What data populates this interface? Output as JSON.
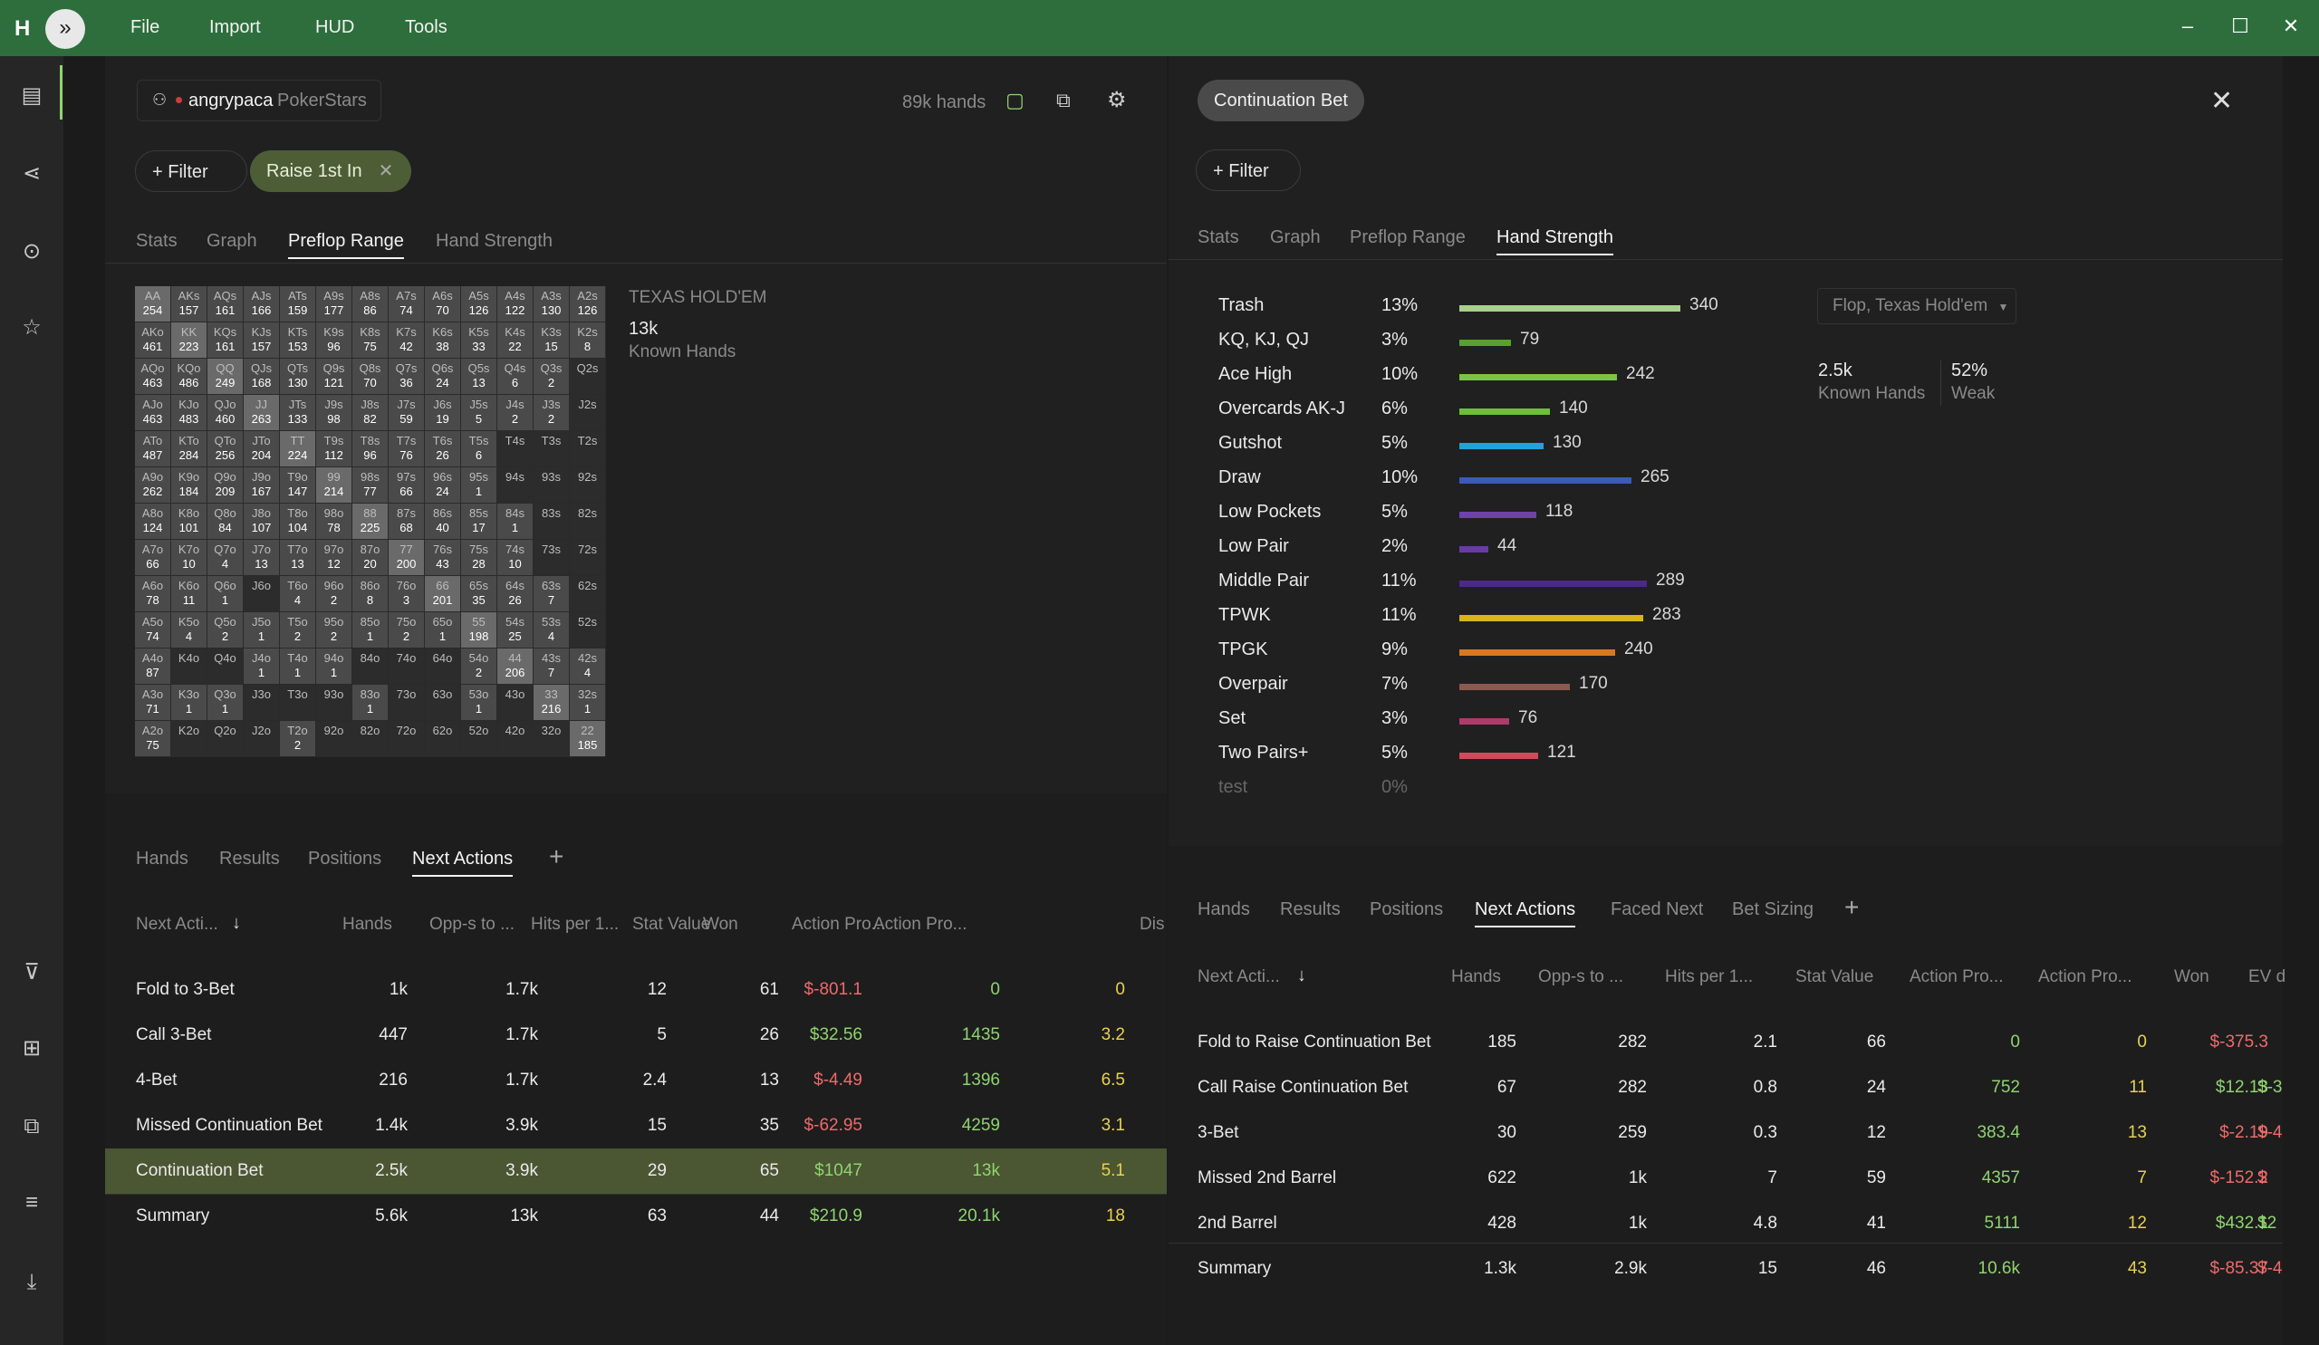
{
  "menu": [
    "File",
    "Import",
    "HUD",
    "Tools"
  ],
  "colors": {
    "titlebar": "#2d6e3c",
    "accent_green": "#8fd46f",
    "negative": "#ef6a6a",
    "highlight_row": "#4b5633"
  },
  "left": {
    "player": {
      "name": "angrypaca",
      "site": "PokerStars"
    },
    "hands_count": "89k hands",
    "filter_label": "Filter",
    "active_filter": "Raise 1st In",
    "tabs": [
      "Stats",
      "Graph",
      "Preflop Range",
      "Hand Strength"
    ],
    "active_tab": "Preflop Range",
    "range_info": {
      "game": "TEXAS HOLD'EM",
      "known": "13k",
      "known_label": "Known Hands"
    },
    "grid": [
      [
        [
          "AA",
          "254"
        ],
        [
          "AKs",
          "157"
        ],
        [
          "AQs",
          "161"
        ],
        [
          "AJs",
          "166"
        ],
        [
          "ATs",
          "159"
        ],
        [
          "A9s",
          "177"
        ],
        [
          "A8s",
          "86"
        ],
        [
          "A7s",
          "74"
        ],
        [
          "A6s",
          "70"
        ],
        [
          "A5s",
          "126"
        ],
        [
          "A4s",
          "122"
        ],
        [
          "A3s",
          "130"
        ],
        [
          "A2s",
          "126"
        ]
      ],
      [
        [
          "AKo",
          "461"
        ],
        [
          "KK",
          "223"
        ],
        [
          "KQs",
          "161"
        ],
        [
          "KJs",
          "157"
        ],
        [
          "KTs",
          "153"
        ],
        [
          "K9s",
          "96"
        ],
        [
          "K8s",
          "75"
        ],
        [
          "K7s",
          "42"
        ],
        [
          "K6s",
          "38"
        ],
        [
          "K5s",
          "33"
        ],
        [
          "K4s",
          "22"
        ],
        [
          "K3s",
          "15"
        ],
        [
          "K2s",
          "8"
        ]
      ],
      [
        [
          "AQo",
          "463"
        ],
        [
          "KQo",
          "486"
        ],
        [
          "QQ",
          "249"
        ],
        [
          "QJs",
          "168"
        ],
        [
          "QTs",
          "130"
        ],
        [
          "Q9s",
          "121"
        ],
        [
          "Q8s",
          "70"
        ],
        [
          "Q7s",
          "36"
        ],
        [
          "Q6s",
          "24"
        ],
        [
          "Q5s",
          "13"
        ],
        [
          "Q4s",
          "6"
        ],
        [
          "Q3s",
          "2"
        ],
        [
          "Q2s",
          ""
        ]
      ],
      [
        [
          "AJo",
          "463"
        ],
        [
          "KJo",
          "483"
        ],
        [
          "QJo",
          "460"
        ],
        [
          "JJ",
          "263"
        ],
        [
          "JTs",
          "133"
        ],
        [
          "J9s",
          "98"
        ],
        [
          "J8s",
          "82"
        ],
        [
          "J7s",
          "59"
        ],
        [
          "J6s",
          "19"
        ],
        [
          "J5s",
          "5"
        ],
        [
          "J4s",
          "2"
        ],
        [
          "J3s",
          "2"
        ],
        [
          "J2s",
          ""
        ]
      ],
      [
        [
          "ATo",
          "487"
        ],
        [
          "KTo",
          "284"
        ],
        [
          "QTo",
          "256"
        ],
        [
          "JTo",
          "204"
        ],
        [
          "TT",
          "224"
        ],
        [
          "T9s",
          "112"
        ],
        [
          "T8s",
          "96"
        ],
        [
          "T7s",
          "76"
        ],
        [
          "T6s",
          "26"
        ],
        [
          "T5s",
          "6"
        ],
        [
          "T4s",
          ""
        ],
        [
          "T3s",
          ""
        ],
        [
          "T2s",
          ""
        ]
      ],
      [
        [
          "A9o",
          "262"
        ],
        [
          "K9o",
          "184"
        ],
        [
          "Q9o",
          "209"
        ],
        [
          "J9o",
          "167"
        ],
        [
          "T9o",
          "147"
        ],
        [
          "99",
          "214"
        ],
        [
          "98s",
          "77"
        ],
        [
          "97s",
          "66"
        ],
        [
          "96s",
          "24"
        ],
        [
          "95s",
          "1"
        ],
        [
          "94s",
          ""
        ],
        [
          "93s",
          ""
        ],
        [
          "92s",
          ""
        ]
      ],
      [
        [
          "A8o",
          "124"
        ],
        [
          "K8o",
          "101"
        ],
        [
          "Q8o",
          "84"
        ],
        [
          "J8o",
          "107"
        ],
        [
          "T8o",
          "104"
        ],
        [
          "98o",
          "78"
        ],
        [
          "88",
          "225"
        ],
        [
          "87s",
          "68"
        ],
        [
          "86s",
          "40"
        ],
        [
          "85s",
          "17"
        ],
        [
          "84s",
          "1"
        ],
        [
          "83s",
          ""
        ],
        [
          "82s",
          ""
        ]
      ],
      [
        [
          "A7o",
          "66"
        ],
        [
          "K7o",
          "10"
        ],
        [
          "Q7o",
          "4"
        ],
        [
          "J7o",
          "13"
        ],
        [
          "T7o",
          "13"
        ],
        [
          "97o",
          "12"
        ],
        [
          "87o",
          "20"
        ],
        [
          "77",
          "200"
        ],
        [
          "76s",
          "43"
        ],
        [
          "75s",
          "28"
        ],
        [
          "74s",
          "10"
        ],
        [
          "73s",
          ""
        ],
        [
          "72s",
          ""
        ]
      ],
      [
        [
          "A6o",
          "78"
        ],
        [
          "K6o",
          "11"
        ],
        [
          "Q6o",
          "1"
        ],
        [
          "J6o",
          ""
        ],
        [
          "T6o",
          "4"
        ],
        [
          "96o",
          "2"
        ],
        [
          "86o",
          "8"
        ],
        [
          "76o",
          "3"
        ],
        [
          "66",
          "201"
        ],
        [
          "65s",
          "35"
        ],
        [
          "64s",
          "26"
        ],
        [
          "63s",
          "7"
        ],
        [
          "62s",
          ""
        ]
      ],
      [
        [
          "A5o",
          "74"
        ],
        [
          "K5o",
          "4"
        ],
        [
          "Q5o",
          "2"
        ],
        [
          "J5o",
          "1"
        ],
        [
          "T5o",
          "2"
        ],
        [
          "95o",
          "2"
        ],
        [
          "85o",
          "1"
        ],
        [
          "75o",
          "2"
        ],
        [
          "65o",
          "1"
        ],
        [
          "55",
          "198"
        ],
        [
          "54s",
          "25"
        ],
        [
          "53s",
          "4"
        ],
        [
          "52s",
          ""
        ]
      ],
      [
        [
          "A4o",
          "87"
        ],
        [
          "K4o",
          ""
        ],
        [
          "Q4o",
          ""
        ],
        [
          "J4o",
          "1"
        ],
        [
          "T4o",
          "1"
        ],
        [
          "94o",
          "1"
        ],
        [
          "84o",
          ""
        ],
        [
          "74o",
          ""
        ],
        [
          "64o",
          ""
        ],
        [
          "54o",
          "2"
        ],
        [
          "44",
          "206"
        ],
        [
          "43s",
          "7"
        ],
        [
          "42s",
          "4"
        ]
      ],
      [
        [
          "A3o",
          "71"
        ],
        [
          "K3o",
          "1"
        ],
        [
          "Q3o",
          "1"
        ],
        [
          "J3o",
          ""
        ],
        [
          "T3o",
          ""
        ],
        [
          "93o",
          ""
        ],
        [
          "83o",
          "1"
        ],
        [
          "73o",
          ""
        ],
        [
          "63o",
          ""
        ],
        [
          "53o",
          "1"
        ],
        [
          "43o",
          ""
        ],
        [
          "33",
          "216"
        ],
        [
          "32s",
          "1"
        ]
      ],
      [
        [
          "A2o",
          "75"
        ],
        [
          "K2o",
          ""
        ],
        [
          "Q2o",
          ""
        ],
        [
          "J2o",
          ""
        ],
        [
          "T2o",
          "2"
        ],
        [
          "92o",
          ""
        ],
        [
          "82o",
          ""
        ],
        [
          "72o",
          ""
        ],
        [
          "62o",
          ""
        ],
        [
          "52o",
          ""
        ],
        [
          "42o",
          ""
        ],
        [
          "32o",
          ""
        ],
        [
          "22",
          "185"
        ]
      ]
    ],
    "bottom_tabs": [
      "Hands",
      "Results",
      "Positions",
      "Next Actions"
    ],
    "table_headers": [
      "Next Acti...",
      "Hands",
      "Opp-s to ...",
      "Hits per 1...",
      "Stat Value",
      "Won",
      "Action Pro...",
      "Action Pro...",
      "Dis"
    ],
    "rows": [
      {
        "name": "Fold to 3-Bet",
        "hands": "1k",
        "opps": "1.7k",
        "hits": "12",
        "stat": "61",
        "won": "$-801.1",
        "ap1": "0",
        "ap2": "0",
        "won_neg": true
      },
      {
        "name": "Call 3-Bet",
        "hands": "447",
        "opps": "1.7k",
        "hits": "5",
        "stat": "26",
        "won": "$32.56",
        "ap1": "1435",
        "ap2": "3.2",
        "won_neg": false
      },
      {
        "name": "4-Bet",
        "hands": "216",
        "opps": "1.7k",
        "hits": "2.4",
        "stat": "13",
        "won": "$-4.49",
        "ap1": "1396",
        "ap2": "6.5",
        "won_neg": true
      },
      {
        "name": "Missed Continuation Bet",
        "hands": "1.4k",
        "opps": "3.9k",
        "hits": "15",
        "stat": "35",
        "won": "$-62.95",
        "ap1": "4259",
        "ap2": "3.1",
        "won_neg": true
      },
      {
        "name": "Continuation Bet",
        "hands": "2.5k",
        "opps": "3.9k",
        "hits": "29",
        "stat": "65",
        "won": "$1047",
        "ap1": "13k",
        "ap2": "5.1",
        "won_neg": false
      },
      {
        "name": "Summary",
        "hands": "5.6k",
        "opps": "13k",
        "hits": "63",
        "stat": "44",
        "won": "$210.9",
        "ap1": "20.1k",
        "ap2": "18",
        "won_neg": false
      }
    ]
  },
  "right": {
    "title_pill": "Continuation Bet",
    "filter_label": "Filter",
    "tabs": [
      "Stats",
      "Graph",
      "Preflop Range",
      "Hand Strength"
    ],
    "active_tab": "Hand Strength",
    "hand_strength": [
      {
        "name": "Trash",
        "pct": "13%",
        "count": 340,
        "color": "#a8d08d"
      },
      {
        "name": "KQ, KJ, QJ",
        "pct": "3%",
        "count": 79,
        "color": "#5aa02c"
      },
      {
        "name": "Ace High",
        "pct": "10%",
        "count": 242,
        "color": "#7cc24a"
      },
      {
        "name": "Overcards AK-J",
        "pct": "6%",
        "count": 140,
        "color": "#6fbe3a"
      },
      {
        "name": "Gutshot",
        "pct": "5%",
        "count": 130,
        "color": "#1fa3d9"
      },
      {
        "name": "Draw",
        "pct": "10%",
        "count": 265,
        "color": "#3b5bb5"
      },
      {
        "name": "Low Pockets",
        "pct": "5%",
        "count": 118,
        "color": "#6d43a8"
      },
      {
        "name": "Low Pair",
        "pct": "2%",
        "count": 44,
        "color": "#6a3aa8"
      },
      {
        "name": "Middle Pair",
        "pct": "11%",
        "count": 289,
        "color": "#4b2a86"
      },
      {
        "name": "TPWK",
        "pct": "11%",
        "count": 283,
        "color": "#d8b51e"
      },
      {
        "name": "TPGK",
        "pct": "9%",
        "count": 240,
        "color": "#d9781e"
      },
      {
        "name": "Overpair",
        "pct": "7%",
        "count": 170,
        "color": "#8a5a50"
      },
      {
        "name": "Set",
        "pct": "3%",
        "count": 76,
        "color": "#b03a6a"
      },
      {
        "name": "Two Pairs+",
        "pct": "5%",
        "count": 121,
        "color": "#d04a5a"
      },
      {
        "name": "test",
        "pct": "0%",
        "count": null,
        "color": "#555"
      }
    ],
    "dropdown": "Flop, Texas Hold'em",
    "summary": {
      "known": "2.5k",
      "known_label": "Known Hands",
      "weak": "52%",
      "weak_label": "Weak"
    },
    "bottom_tabs": [
      "Hands",
      "Results",
      "Positions",
      "Next Actions",
      "Faced Next",
      "Bet Sizing"
    ],
    "table_headers": [
      "Next Acti...",
      "Hands",
      "Opp-s to ...",
      "Hits per 1...",
      "Stat Value",
      "Action Pro...",
      "Action Pro...",
      "Won",
      "EV d"
    ],
    "rows": [
      {
        "name": "Fold to Raise Continuation Bet",
        "hands": "185",
        "opps": "282",
        "hits": "2.1",
        "stat": "66",
        "ap1": "0",
        "ap2": "0",
        "won": "$-375.3",
        "ev": "",
        "won_neg": true
      },
      {
        "name": "Call Raise Continuation Bet",
        "hands": "67",
        "opps": "282",
        "hits": "0.8",
        "stat": "24",
        "ap1": "752",
        "ap2": "11",
        "won": "$12.13",
        "ev": "$-3",
        "won_neg": false
      },
      {
        "name": "3-Bet",
        "hands": "30",
        "opps": "259",
        "hits": "0.3",
        "stat": "12",
        "ap1": "383.4",
        "ap2": "13",
        "won": "$-2.19",
        "ev": "$-4",
        "won_neg": true
      },
      {
        "name": "Missed 2nd Barrel",
        "hands": "622",
        "opps": "1k",
        "hits": "7",
        "stat": "59",
        "ap1": "4357",
        "ap2": "7",
        "won": "$-152.2",
        "ev": "$",
        "won_neg": true
      },
      {
        "name": "2nd Barrel",
        "hands": "428",
        "opps": "1k",
        "hits": "4.8",
        "stat": "41",
        "ap1": "5111",
        "ap2": "12",
        "won": "$432.1",
        "ev": "$2",
        "won_neg": false
      },
      {
        "name": "Summary",
        "hands": "1.3k",
        "opps": "2.9k",
        "hits": "15",
        "stat": "46",
        "ap1": "10.6k",
        "ap2": "43",
        "won": "$-85.37",
        "ev": "$-4",
        "won_neg": true
      }
    ]
  }
}
